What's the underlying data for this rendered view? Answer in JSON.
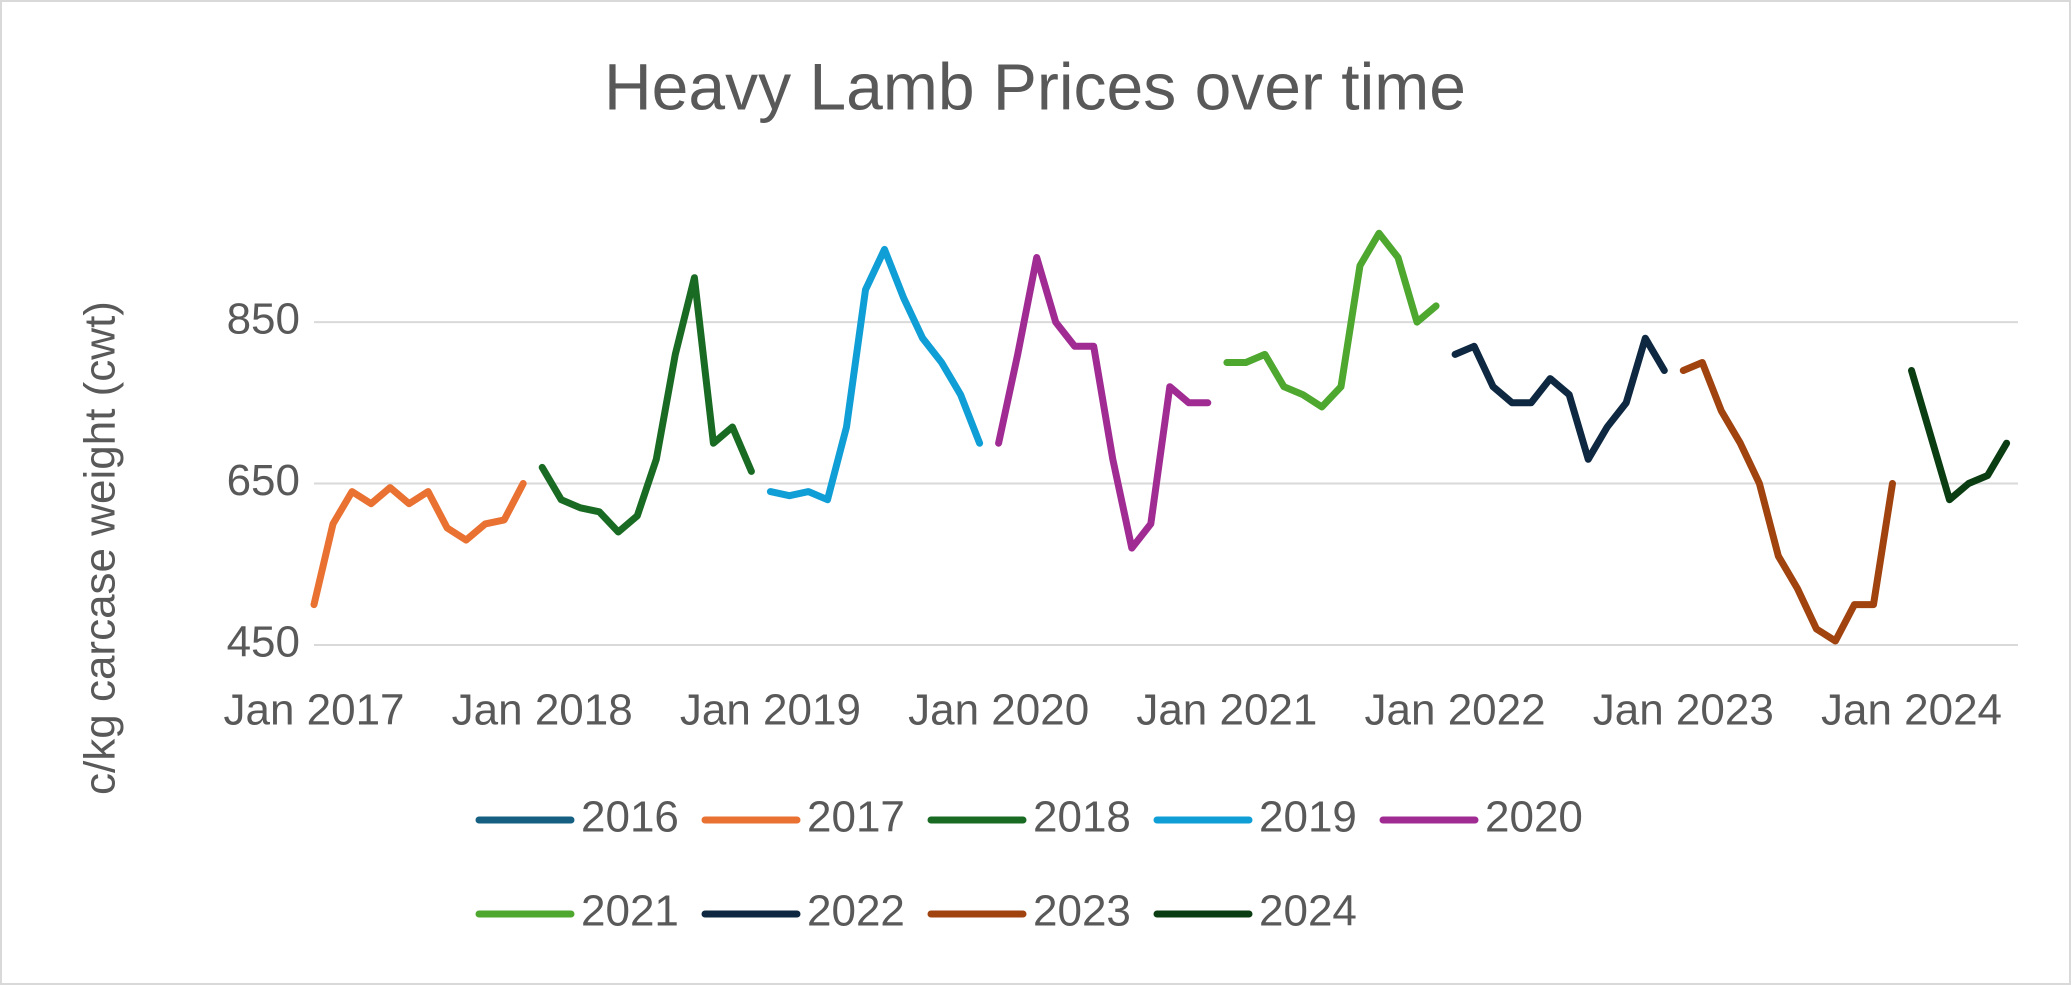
{
  "chart_data": {
    "type": "line",
    "title": "Heavy Lamb Prices over time",
    "y_label": "c/kg carcase weight (cwt)",
    "x": [
      "2017-01",
      "2017-02",
      "2017-03",
      "2017-04",
      "2017-05",
      "2017-06",
      "2017-07",
      "2017-08",
      "2017-09",
      "2017-10",
      "2017-11",
      "2017-12",
      "2018-01",
      "2018-02",
      "2018-03",
      "2018-04",
      "2018-05",
      "2018-06",
      "2018-07",
      "2018-08",
      "2018-09",
      "2018-10",
      "2018-11",
      "2018-12",
      "2019-01",
      "2019-02",
      "2019-03",
      "2019-04",
      "2019-05",
      "2019-06",
      "2019-07",
      "2019-08",
      "2019-09",
      "2019-10",
      "2019-11",
      "2019-12",
      "2020-01",
      "2020-02",
      "2020-03",
      "2020-04",
      "2020-05",
      "2020-06",
      "2020-07",
      "2020-08",
      "2020-09",
      "2020-10",
      "2020-11",
      "2020-12",
      "2021-01",
      "2021-02",
      "2021-03",
      "2021-04",
      "2021-05",
      "2021-06",
      "2021-07",
      "2021-08",
      "2021-09",
      "2021-10",
      "2021-11",
      "2021-12",
      "2022-01",
      "2022-02",
      "2022-03",
      "2022-04",
      "2022-05",
      "2022-06",
      "2022-07",
      "2022-08",
      "2022-09",
      "2022-10",
      "2022-11",
      "2022-12",
      "2023-01",
      "2023-02",
      "2023-03",
      "2023-04",
      "2023-05",
      "2023-06",
      "2023-07",
      "2023-08",
      "2023-09",
      "2023-10",
      "2023-11",
      "2023-12",
      "2024-01",
      "2024-02",
      "2024-03",
      "2024-04",
      "2024-05",
      "2024-06"
    ],
    "xticks": [
      {
        "value": "2017-01",
        "label": "Jan 2017"
      },
      {
        "value": "2018-01",
        "label": "Jan 2018"
      },
      {
        "value": "2019-01",
        "label": "Jan 2019"
      },
      {
        "value": "2020-01",
        "label": "Jan 2020"
      },
      {
        "value": "2021-01",
        "label": "Jan 2021"
      },
      {
        "value": "2022-01",
        "label": "Jan 2022"
      },
      {
        "value": "2023-01",
        "label": "Jan 2023"
      },
      {
        "value": "2024-01",
        "label": "Jan 2024"
      }
    ],
    "ylim": [
      450,
      1000
    ],
    "yticks": [
      450,
      650,
      850
    ],
    "grid": true,
    "legend": "bottom",
    "series": [
      {
        "name": "2016",
        "color": "#156082",
        "values": [
          null,
          null,
          null,
          null,
          null,
          null,
          null,
          null,
          null,
          null,
          null,
          null,
          null,
          null,
          null,
          null,
          null,
          null,
          null,
          null,
          null,
          null,
          null,
          null,
          null,
          null,
          null,
          null,
          null,
          null,
          null,
          null,
          null,
          null,
          null,
          null,
          null,
          null,
          null,
          null,
          null,
          null,
          null,
          null,
          null,
          null,
          null,
          null,
          null,
          null,
          null,
          null,
          null,
          null,
          null,
          null,
          null,
          null,
          null,
          null,
          null,
          null,
          null,
          null,
          null,
          null,
          null,
          null,
          null,
          null,
          null,
          null,
          null,
          null,
          null,
          null,
          null,
          null,
          null,
          null,
          null,
          null,
          null,
          null,
          null,
          null,
          null,
          null,
          null,
          null
        ]
      },
      {
        "name": "2017",
        "color": "#e97132",
        "values": [
          500,
          600,
          640,
          625,
          645,
          625,
          640,
          595,
          580,
          600,
          605,
          650,
          null,
          null,
          null,
          null,
          null,
          null,
          null,
          null,
          null,
          null,
          null,
          null,
          null,
          null,
          null,
          null,
          null,
          null,
          null,
          null,
          null,
          null,
          null,
          null,
          null,
          null,
          null,
          null,
          null,
          null,
          null,
          null,
          null,
          null,
          null,
          null,
          null,
          null,
          null,
          null,
          null,
          null,
          null,
          null,
          null,
          null,
          null,
          null,
          null,
          null,
          null,
          null,
          null,
          null,
          null,
          null,
          null,
          null,
          null,
          null,
          null,
          null,
          null,
          null,
          null,
          null,
          null,
          null,
          null,
          null,
          null,
          null,
          null,
          null,
          null,
          null,
          null,
          null
        ]
      },
      {
        "name": "2018",
        "color": "#196b24",
        "values": [
          null,
          null,
          null,
          null,
          null,
          null,
          null,
          null,
          null,
          null,
          null,
          null,
          670,
          630,
          620,
          615,
          590,
          610,
          680,
          810,
          905,
          700,
          720,
          665,
          null,
          null,
          null,
          null,
          null,
          null,
          null,
          null,
          null,
          null,
          null,
          null,
          null,
          null,
          null,
          null,
          null,
          null,
          null,
          null,
          null,
          null,
          null,
          null,
          null,
          null,
          null,
          null,
          null,
          null,
          null,
          null,
          null,
          null,
          null,
          null,
          null,
          null,
          null,
          null,
          null,
          null,
          null,
          null,
          null,
          null,
          null,
          null,
          null,
          null,
          null,
          null,
          null,
          null,
          null,
          null,
          null,
          null,
          null,
          null,
          null,
          null,
          null,
          null,
          null,
          null
        ]
      },
      {
        "name": "2019",
        "color": "#0f9ed5",
        "values": [
          null,
          null,
          null,
          null,
          null,
          null,
          null,
          null,
          null,
          null,
          null,
          null,
          null,
          null,
          null,
          null,
          null,
          null,
          null,
          null,
          null,
          null,
          null,
          null,
          640,
          635,
          640,
          630,
          720,
          890,
          940,
          880,
          830,
          800,
          760,
          700,
          null,
          null,
          null,
          null,
          null,
          null,
          null,
          null,
          null,
          null,
          null,
          null,
          null,
          null,
          null,
          null,
          null,
          null,
          null,
          null,
          null,
          null,
          null,
          null,
          null,
          null,
          null,
          null,
          null,
          null,
          null,
          null,
          null,
          null,
          null,
          null,
          null,
          null,
          null,
          null,
          null,
          null,
          null,
          null,
          null,
          null,
          null,
          null,
          null,
          null,
          null,
          null,
          null,
          null
        ]
      },
      {
        "name": "2020",
        "color": "#a02b93",
        "values": [
          null,
          null,
          null,
          null,
          null,
          null,
          null,
          null,
          null,
          null,
          null,
          null,
          null,
          null,
          null,
          null,
          null,
          null,
          null,
          null,
          null,
          null,
          null,
          null,
          null,
          null,
          null,
          null,
          null,
          null,
          null,
          null,
          null,
          null,
          null,
          null,
          700,
          810,
          930,
          850,
          820,
          820,
          680,
          570,
          600,
          770,
          750,
          750,
          null,
          null,
          null,
          null,
          null,
          null,
          null,
          null,
          null,
          null,
          null,
          null,
          null,
          null,
          null,
          null,
          null,
          null,
          null,
          null,
          null,
          null,
          null,
          null,
          null,
          null,
          null,
          null,
          null,
          null,
          null,
          null,
          null,
          null,
          null,
          null,
          null,
          null,
          null,
          null,
          null,
          null
        ]
      },
      {
        "name": "2021",
        "color": "#4ea72e",
        "values": [
          null,
          null,
          null,
          null,
          null,
          null,
          null,
          null,
          null,
          null,
          null,
          null,
          null,
          null,
          null,
          null,
          null,
          null,
          null,
          null,
          null,
          null,
          null,
          null,
          null,
          null,
          null,
          null,
          null,
          null,
          null,
          null,
          null,
          null,
          null,
          null,
          null,
          null,
          null,
          null,
          null,
          null,
          null,
          null,
          null,
          null,
          null,
          null,
          800,
          800,
          810,
          770,
          760,
          745,
          770,
          920,
          960,
          930,
          850,
          870,
          null,
          null,
          null,
          null,
          null,
          null,
          null,
          null,
          null,
          null,
          null,
          null,
          null,
          null,
          null,
          null,
          null,
          null,
          null,
          null,
          null,
          null,
          null,
          null,
          null,
          null,
          null,
          null,
          null,
          null
        ]
      },
      {
        "name": "2022",
        "color": "#0e2841",
        "values": [
          null,
          null,
          null,
          null,
          null,
          null,
          null,
          null,
          null,
          null,
          null,
          null,
          null,
          null,
          null,
          null,
          null,
          null,
          null,
          null,
          null,
          null,
          null,
          null,
          null,
          null,
          null,
          null,
          null,
          null,
          null,
          null,
          null,
          null,
          null,
          null,
          null,
          null,
          null,
          null,
          null,
          null,
          null,
          null,
          null,
          null,
          null,
          null,
          null,
          null,
          null,
          null,
          null,
          null,
          null,
          null,
          null,
          null,
          null,
          null,
          810,
          820,
          770,
          750,
          750,
          780,
          760,
          680,
          720,
          750,
          830,
          790,
          null,
          null,
          null,
          null,
          null,
          null,
          null,
          null,
          null,
          null,
          null,
          null,
          null,
          null,
          null,
          null,
          null,
          null
        ]
      },
      {
        "name": "2023",
        "color": "#a0430f",
        "values": [
          null,
          null,
          null,
          null,
          null,
          null,
          null,
          null,
          null,
          null,
          null,
          null,
          null,
          null,
          null,
          null,
          null,
          null,
          null,
          null,
          null,
          null,
          null,
          null,
          null,
          null,
          null,
          null,
          null,
          null,
          null,
          null,
          null,
          null,
          null,
          null,
          null,
          null,
          null,
          null,
          null,
          null,
          null,
          null,
          null,
          null,
          null,
          null,
          null,
          null,
          null,
          null,
          null,
          null,
          null,
          null,
          null,
          null,
          null,
          null,
          null,
          null,
          null,
          null,
          null,
          null,
          null,
          null,
          null,
          null,
          null,
          null,
          790,
          800,
          740,
          700,
          650,
          560,
          520,
          470,
          455,
          500,
          500,
          650,
          null,
          null,
          null,
          null,
          null,
          null
        ]
      },
      {
        "name": "2024",
        "color": "#0b3d12",
        "values": [
          null,
          null,
          null,
          null,
          null,
          null,
          null,
          null,
          null,
          null,
          null,
          null,
          null,
          null,
          null,
          null,
          null,
          null,
          null,
          null,
          null,
          null,
          null,
          null,
          null,
          null,
          null,
          null,
          null,
          null,
          null,
          null,
          null,
          null,
          null,
          null,
          null,
          null,
          null,
          null,
          null,
          null,
          null,
          null,
          null,
          null,
          null,
          null,
          null,
          null,
          null,
          null,
          null,
          null,
          null,
          null,
          null,
          null,
          null,
          null,
          null,
          null,
          null,
          null,
          null,
          null,
          null,
          null,
          null,
          null,
          null,
          null,
          null,
          null,
          null,
          null,
          null,
          null,
          null,
          null,
          null,
          null,
          null,
          null,
          790,
          710,
          630,
          650,
          660,
          700
        ]
      }
    ]
  }
}
